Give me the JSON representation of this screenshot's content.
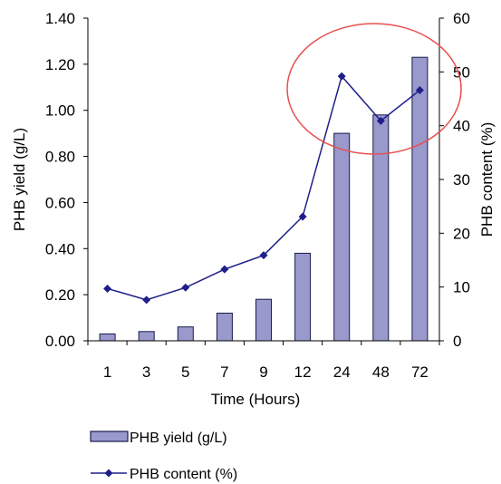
{
  "chart_data": {
    "type": "bar",
    "categories": [
      "1",
      "3",
      "5",
      "7",
      "9",
      "12",
      "24",
      "48",
      "72"
    ],
    "series": [
      {
        "name": "PHB yield (g/L)",
        "type": "bar",
        "axis": "left",
        "values": [
          0.03,
          0.04,
          0.06,
          0.12,
          0.18,
          0.38,
          0.9,
          0.98,
          1.23
        ]
      },
      {
        "name": "PHB content (%)",
        "type": "line",
        "axis": "right",
        "values": [
          9.7,
          7.6,
          9.9,
          13.3,
          15.9,
          23.1,
          49.2,
          40.9,
          46.6
        ]
      }
    ],
    "xlabel": "Time (Hours)",
    "ylabel": "PHB yield (g/L)",
    "y2label": "PHB content (%)",
    "ylim": [
      0,
      1.4
    ],
    "y2lim": [
      0,
      60
    ],
    "yticks": [
      "0.00",
      "0.20",
      "0.40",
      "0.60",
      "0.80",
      "1.00",
      "1.20",
      "1.40"
    ],
    "y2ticks": [
      "0",
      "10",
      "20",
      "30",
      "40",
      "50",
      "60"
    ],
    "grid": false,
    "legend": "bottom-left",
    "annotation": "circle-around-24-72",
    "colors": {
      "bar_fill": "#9999cc",
      "bar_stroke": "#1a1a4d",
      "line": "#1f1f8a",
      "axis": "#000000",
      "circle": "#e85050"
    }
  }
}
